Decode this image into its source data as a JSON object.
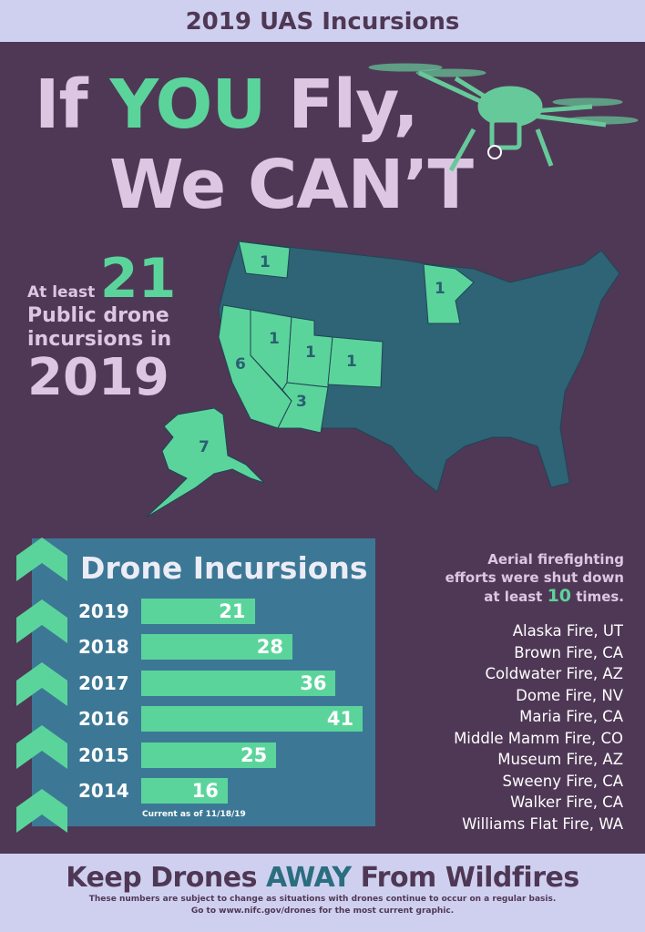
{
  "header": {
    "title": "2019 UAS Incursions"
  },
  "headline": {
    "line1_pre": "If ",
    "line1_em": "YOU",
    "line1_post": " Fly,",
    "line2": "We CAN’T"
  },
  "summary": {
    "prefix": "At least",
    "count": "21",
    "line1": "Public drone",
    "line2": "incursions in",
    "year": "2019"
  },
  "map": {
    "states": [
      {
        "name": "WA",
        "count": "1"
      },
      {
        "name": "CA",
        "count": "6"
      },
      {
        "name": "NV",
        "count": "1"
      },
      {
        "name": "UT",
        "count": "1"
      },
      {
        "name": "CO",
        "count": "1"
      },
      {
        "name": "AZ",
        "count": "3"
      },
      {
        "name": "MN",
        "count": "1"
      },
      {
        "name": "AK",
        "count": "7"
      }
    ],
    "colors": {
      "highlight": "#5bd49b",
      "base": "#2f6376"
    }
  },
  "chart_data": {
    "type": "bar",
    "title": "Drone Incursions",
    "categories": [
      "2019",
      "2018",
      "2017",
      "2016",
      "2015",
      "2014"
    ],
    "values": [
      21,
      28,
      36,
      41,
      25,
      16
    ],
    "xlabel": "",
    "ylabel": "",
    "note": "Current as of  11/18/19"
  },
  "aerial": {
    "line1": "Aerial firefighting",
    "line2": "efforts were shut down",
    "line3_pre": "at least ",
    "count": "10",
    "line3_post": " times."
  },
  "fires": [
    "Alaska Fire, UT",
    "Brown Fire, CA",
    "Coldwater Fire, AZ",
    "Dome Fire, NV",
    "Maria Fire, CA",
    "Middle Mamm Fire, CO",
    "Museum Fire, AZ",
    "Sweeny Fire, CA",
    "Walker Fire, CA",
    "Williams Flat Fire, WA"
  ],
  "footer": {
    "pre": "Keep Drones ",
    "em": "AWAY",
    "post": " From Wildfires",
    "note1": "These numbers are subject to change as situations with drones continue to occur on a regular basis.",
    "note2": "Go to www.nifc.gov/drones for the most current graphic."
  }
}
